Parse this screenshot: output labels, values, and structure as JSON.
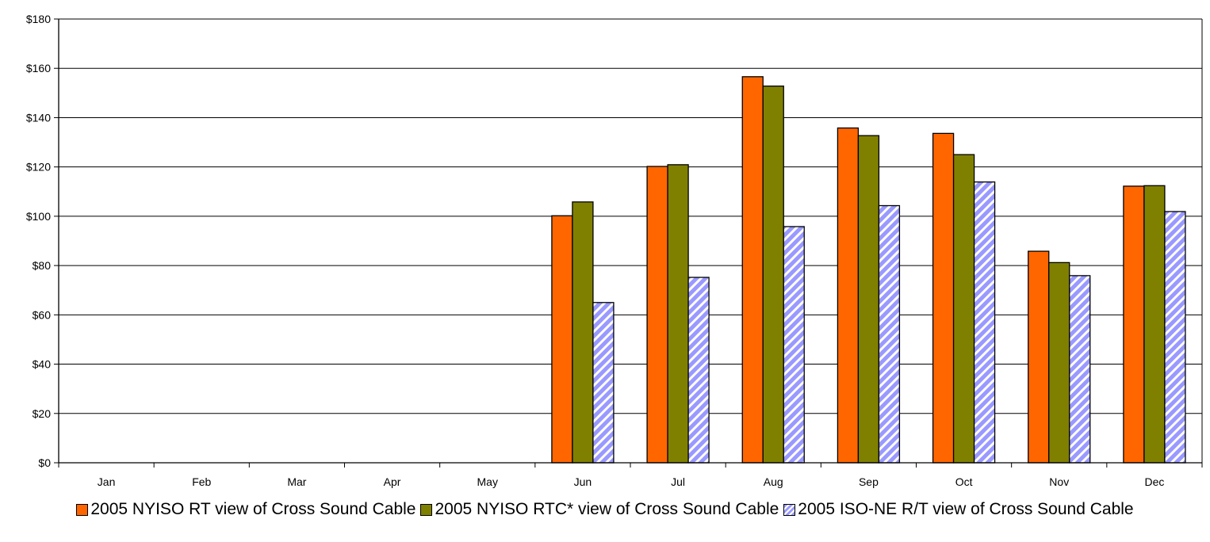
{
  "chart_data": {
    "type": "bar",
    "categories": [
      "Jan",
      "Feb",
      "Mar",
      "Apr",
      "May",
      "Jun",
      "Jul",
      "Aug",
      "Sep",
      "Oct",
      "Nov",
      "Dec"
    ],
    "series": [
      {
        "name": "2005 NYISO RT view of Cross Sound Cable",
        "color": "#FF6600",
        "pattern": "solid",
        "values": [
          null,
          null,
          null,
          null,
          null,
          100.2,
          120.2,
          156.6,
          135.8,
          133.6,
          85.8,
          112.2
        ]
      },
      {
        "name": "2005 NYISO RTC* view of Cross Sound Cable",
        "color": "#808000",
        "pattern": "solid",
        "values": [
          null,
          null,
          null,
          null,
          null,
          105.8,
          120.9,
          152.8,
          132.7,
          125.0,
          81.2,
          112.4
        ]
      },
      {
        "name": "2005 ISO-NE R/T view of Cross Sound Cable",
        "color": "#9999FF",
        "pattern": "diagonal-stripes",
        "values": [
          null,
          null,
          null,
          null,
          null,
          65.0,
          75.2,
          95.8,
          104.3,
          113.9,
          75.9,
          101.9
        ]
      }
    ],
    "yticks": [
      "$0",
      "$20",
      "$40",
      "$60",
      "$80",
      "$100",
      "$120",
      "$140",
      "$160",
      "$180"
    ],
    "ylim": [
      0,
      180
    ],
    "grid": true,
    "legend_position": "bottom"
  }
}
